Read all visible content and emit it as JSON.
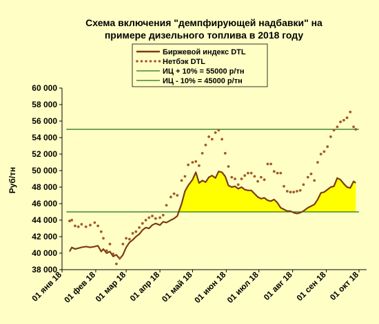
{
  "chart_data": {
    "type": "line",
    "title_line1": "Схема включения \"демпфирующей надбавки\" на",
    "title_line2": "примере дизельного топлива в 2018 году",
    "ylabel": "Руб/тн",
    "xlabel": "",
    "ylim": [
      38000,
      60000
    ],
    "yticks": [
      "38 000",
      "40 000",
      "42 000",
      "44 000",
      "46 000",
      "48 000",
      "50 000",
      "52 000",
      "54 000",
      "56 000",
      "58 000",
      "60 000"
    ],
    "ytick_values": [
      38000,
      40000,
      42000,
      44000,
      46000,
      48000,
      50000,
      52000,
      54000,
      56000,
      58000,
      60000
    ],
    "xticks": [
      "01 янв 18",
      "01 фев 18",
      "01 мар 18",
      "01 апр 18",
      "01 май 18",
      "01 июн 18",
      "01 июл 18",
      "01 авг 18",
      "01 сен 18",
      "01 окт 18"
    ],
    "xtick_days": [
      0,
      31,
      59,
      90,
      120,
      151,
      181,
      212,
      243,
      273
    ],
    "x_unit": "days since 01 янв 18",
    "legend_position": "top",
    "grid": false,
    "reference_lines": [
      {
        "name": "ИЦ + 10%  = 55000  р/тн",
        "value": 55000,
        "color": "#1e6b1e"
      },
      {
        "name": "ИЦ - 10%  = 45000  р/тн",
        "value": 45000,
        "color": "#1e6b1e"
      }
    ],
    "fill_color": "#ffff00",
    "series": [
      {
        "name": "Биржевой индекс DTL",
        "style": "line",
        "color": "#7b3b12",
        "x": [
          7,
          9,
          12,
          15,
          18,
          22,
          26,
          30,
          33,
          36,
          38,
          41,
          44,
          47,
          50,
          53,
          56,
          59,
          62,
          65,
          68,
          71,
          74,
          77,
          80,
          83,
          86,
          90,
          93,
          96,
          100,
          103,
          106,
          110,
          113,
          116,
          120,
          123,
          126,
          129,
          132,
          135,
          138,
          141,
          144,
          147,
          150,
          153,
          156,
          159,
          162,
          165,
          168,
          171,
          174,
          177,
          180,
          183,
          186,
          189,
          192,
          195,
          198,
          201,
          204,
          207,
          210,
          213,
          216,
          219,
          222,
          226,
          229,
          232,
          235,
          238,
          241,
          244,
          247,
          250,
          253,
          256,
          259,
          262,
          265,
          268,
          270
        ],
        "y": [
          40200,
          40700,
          40500,
          40600,
          40700,
          40800,
          40700,
          40800,
          40900,
          40200,
          40500,
          40000,
          40200,
          39600,
          39800,
          39300,
          39800,
          40700,
          41300,
          41600,
          42000,
          42300,
          42800,
          43100,
          43000,
          43400,
          43600,
          43400,
          43800,
          43700,
          44000,
          44200,
          44500,
          46000,
          47500,
          48200,
          48900,
          49800,
          48500,
          48800,
          48600,
          49200,
          49400,
          49100,
          49900,
          49800,
          49300,
          48200,
          48000,
          48100,
          47800,
          48000,
          47700,
          47600,
          47600,
          47200,
          46800,
          46600,
          46700,
          46400,
          46300,
          46500,
          46100,
          45500,
          45300,
          45100,
          45100,
          44900,
          44800,
          44900,
          45100,
          45500,
          45700,
          45900,
          46500,
          47300,
          47400,
          47700,
          48000,
          48100,
          49100,
          48900,
          48400,
          48000,
          47900,
          48700,
          48500
        ]
      },
      {
        "name": "Нетбэк DTL",
        "style": "dotted",
        "color": "#a05a2c",
        "x": [
          7,
          9,
          12,
          15,
          18,
          22,
          26,
          30,
          33,
          36,
          38,
          41,
          44,
          47,
          50,
          53,
          56,
          59,
          62,
          65,
          68,
          71,
          74,
          77,
          80,
          83,
          86,
          90,
          93,
          96,
          100,
          103,
          106,
          110,
          113,
          116,
          120,
          123,
          126,
          129,
          132,
          135,
          138,
          141,
          144,
          147,
          150,
          153,
          156,
          159,
          162,
          165,
          168,
          171,
          174,
          177,
          180,
          183,
          186,
          189,
          192,
          195,
          198,
          201,
          204,
          207,
          210,
          213,
          216,
          219,
          222,
          226,
          229,
          232,
          235,
          238,
          241,
          244,
          247,
          250,
          253,
          256,
          259,
          262,
          265,
          268,
          270
        ],
        "y": [
          43900,
          44000,
          43300,
          43200,
          43500,
          43200,
          43400,
          43700,
          43300,
          42600,
          41800,
          40300,
          41100,
          39900,
          38700,
          39400,
          41100,
          41800,
          41700,
          42400,
          42600,
          43100,
          43600,
          44000,
          44300,
          44500,
          44200,
          44300,
          44600,
          45800,
          46800,
          47200,
          47000,
          48800,
          49300,
          50700,
          51000,
          51100,
          50600,
          52100,
          53100,
          54100,
          53800,
          54600,
          54900,
          53800,
          52100,
          50500,
          49200,
          49000,
          48300,
          49000,
          49400,
          49700,
          49700,
          49300,
          48700,
          49200,
          48900,
          50800,
          50800,
          49900,
          49700,
          49700,
          48100,
          47500,
          47400,
          47400,
          47500,
          47600,
          48300,
          49200,
          49600,
          48800,
          51000,
          52000,
          52300,
          52900,
          54100,
          54900,
          55300,
          55900,
          56100,
          56400,
          57100,
          55300,
          55000
        ]
      }
    ]
  }
}
